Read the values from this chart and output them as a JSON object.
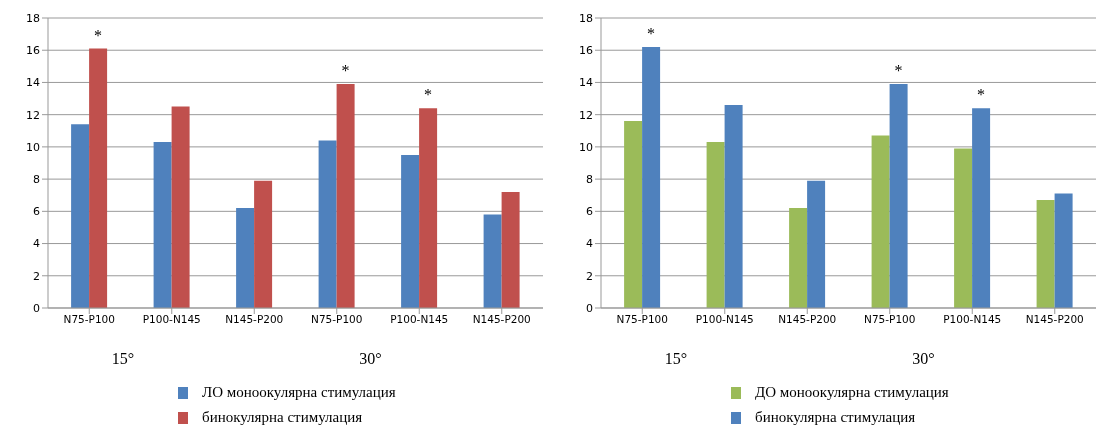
{
  "chart_data": [
    {
      "type": "bar",
      "categories": [
        "N75-P100",
        "P100-N145",
        "N145-P200",
        "N75-P100",
        "P100-N145",
        "N145-P200"
      ],
      "series": [
        {
          "name": "ЛО моноокулярна стимулация",
          "color": "#4f81bd",
          "values": [
            11.4,
            10.3,
            6.2,
            10.4,
            9.5,
            5.8
          ]
        },
        {
          "name": "бинокулярна стимулация",
          "color": "#c0504d",
          "values": [
            16.1,
            12.5,
            7.9,
            13.9,
            12.4,
            7.2
          ],
          "value_labels": [
            "*",
            null,
            null,
            "*",
            "*",
            null
          ]
        }
      ],
      "ylim": [
        0,
        18
      ],
      "yticks": [
        0,
        2,
        4,
        6,
        8,
        10,
        12,
        14,
        16,
        18
      ],
      "grid": "y",
      "legend": "bottom",
      "annotations": [
        "15°",
        "30°"
      ]
    },
    {
      "type": "bar",
      "categories": [
        "N75-P100",
        "P100-N145",
        "N145-P200",
        "N75-P100",
        "P100-N145",
        "N145-P200"
      ],
      "series": [
        {
          "name": "ДО моноокулярна стимулация",
          "color": "#9bbb59",
          "values": [
            11.6,
            10.3,
            6.2,
            10.7,
            9.9,
            6.7
          ]
        },
        {
          "name": "бинокулярна стимулация",
          "color": "#4f81bd",
          "values": [
            16.2,
            12.6,
            7.9,
            13.9,
            12.4,
            7.1
          ],
          "value_labels": [
            "*",
            null,
            null,
            "*",
            "*",
            null
          ]
        }
      ],
      "ylim": [
        0,
        18
      ],
      "yticks": [
        0,
        2,
        4,
        6,
        8,
        10,
        12,
        14,
        16,
        18
      ],
      "grid": "y",
      "legend": "bottom",
      "annotations": [
        "15°",
        "30°"
      ]
    }
  ]
}
